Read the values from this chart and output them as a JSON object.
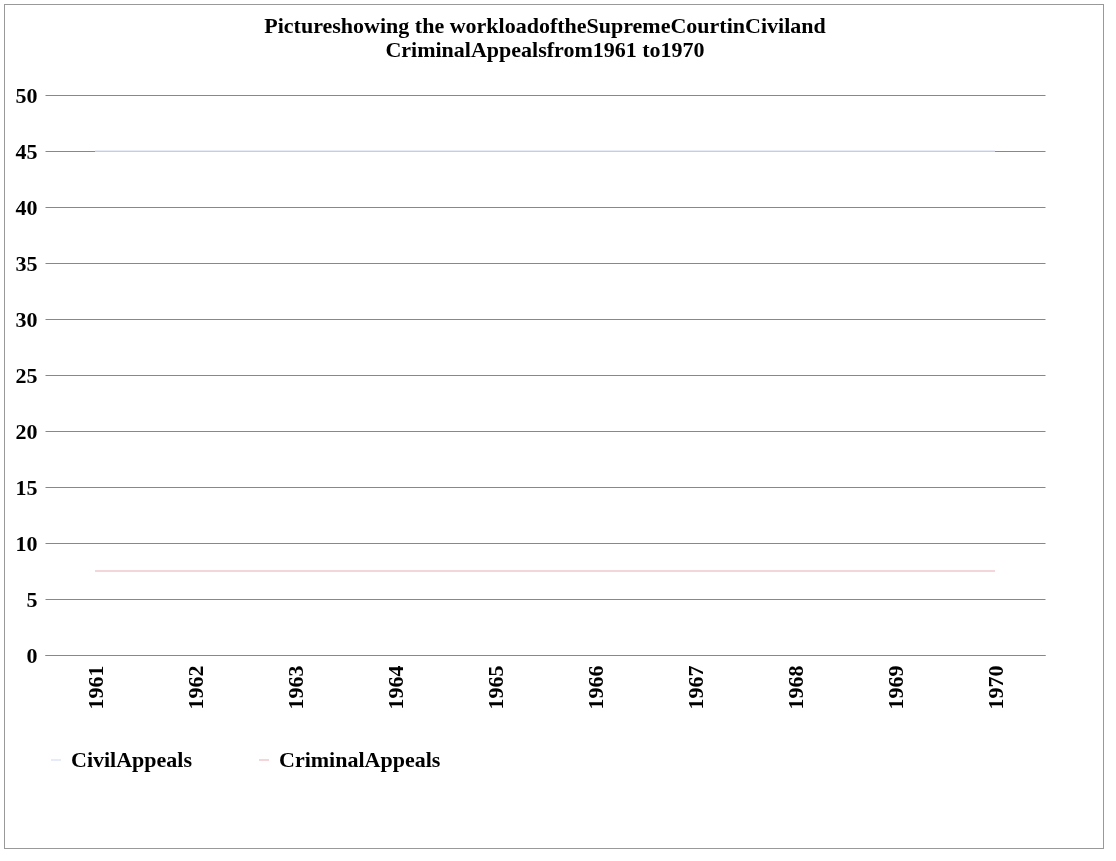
{
  "chart_data": {
    "type": "line",
    "title": [
      "Pictureshowing the workloadoftheSupremeCourtinCiviland",
      "CriminalAppealsfrom1961 to1970"
    ],
    "categories": [
      "1961",
      "1962",
      "1963",
      "1964",
      "1965",
      "1966",
      "1967",
      "1968",
      "1969",
      "1970"
    ],
    "series": [
      {
        "name": "CivilAppeals",
        "color": "#dfe4f5",
        "values": [
          45,
          45,
          45,
          45,
          45,
          45,
          45,
          45,
          45,
          45
        ]
      },
      {
        "name": "CriminalAppeals",
        "color": "#f0c8ce",
        "values": [
          7.5,
          7.5,
          7.5,
          7.5,
          7.5,
          7.5,
          7.5,
          7.5,
          7.5,
          7.5
        ]
      }
    ],
    "ylim": [
      0,
      50
    ],
    "yticks": [
      0,
      5,
      10,
      15,
      20,
      25,
      30,
      35,
      40,
      45,
      50
    ],
    "grid": "y",
    "legend": "bottom"
  }
}
